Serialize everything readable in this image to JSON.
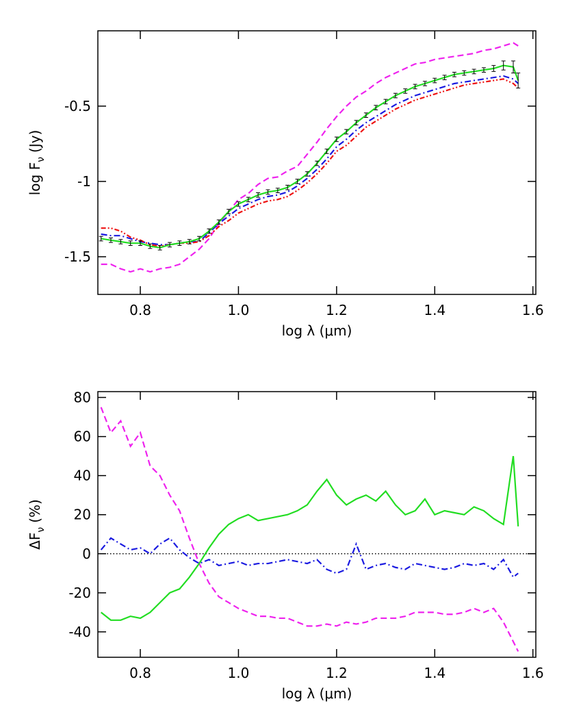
{
  "chart_data": [
    {
      "type": "line",
      "y_label": [
        "log F",
        "ν",
        "(Jy)"
      ],
      "x_label": "log λ (μm)",
      "x": [
        0.72,
        0.74,
        0.76,
        0.78,
        0.8,
        0.82,
        0.84,
        0.86,
        0.88,
        0.9,
        0.92,
        0.94,
        0.96,
        0.98,
        1.0,
        1.02,
        1.04,
        1.06,
        1.08,
        1.1,
        1.12,
        1.14,
        1.16,
        1.18,
        1.2,
        1.22,
        1.24,
        1.26,
        1.28,
        1.3,
        1.32,
        1.34,
        1.36,
        1.38,
        1.4,
        1.42,
        1.44,
        1.46,
        1.48,
        1.5,
        1.52,
        1.54,
        1.56,
        1.57
      ],
      "xlim": [
        0.7135,
        1.606
      ],
      "xticks": [
        {
          "value": 0.8,
          "label": "0.8"
        },
        {
          "value": 1.0,
          "label": "1.0"
        },
        {
          "value": 1.2,
          "label": "1.2"
        },
        {
          "value": 1.4,
          "label": "1.4"
        },
        {
          "value": 1.6,
          "label": "1.6"
        }
      ],
      "ylim": [
        -1.75,
        0
      ],
      "yticks": [
        -1.5,
        -1.0,
        -0.5
      ],
      "series": [
        {
          "color": "#ee22ee",
          "style": "dashed",
          "values": [
            -1.55,
            -1.55,
            -1.58,
            -1.6,
            -1.58,
            -1.6,
            -1.58,
            -1.57,
            -1.55,
            -1.5,
            -1.45,
            -1.38,
            -1.28,
            -1.2,
            -1.12,
            -1.08,
            -1.02,
            -0.98,
            -0.97,
            -0.93,
            -0.9,
            -0.82,
            -0.74,
            -0.65,
            -0.57,
            -0.5,
            -0.44,
            -0.4,
            -0.35,
            -0.31,
            -0.28,
            -0.25,
            -0.22,
            -0.21,
            -0.19,
            -0.18,
            -0.17,
            -0.16,
            -0.15,
            -0.13,
            -0.12,
            -0.1,
            -0.08,
            -0.1
          ]
        },
        {
          "color": "#1a1ae0",
          "style": "dashdot",
          "values": [
            -1.35,
            -1.36,
            -1.36,
            -1.38,
            -1.4,
            -1.41,
            -1.42,
            -1.42,
            -1.41,
            -1.4,
            -1.4,
            -1.34,
            -1.28,
            -1.23,
            -1.18,
            -1.15,
            -1.12,
            -1.1,
            -1.09,
            -1.07,
            -1.03,
            -0.98,
            -0.92,
            -0.85,
            -0.77,
            -0.72,
            -0.66,
            -0.61,
            -0.57,
            -0.53,
            -0.49,
            -0.46,
            -0.43,
            -0.41,
            -0.39,
            -0.37,
            -0.35,
            -0.34,
            -0.33,
            -0.32,
            -0.31,
            -0.3,
            -0.32,
            -0.35
          ]
        },
        {
          "color": "#ee1111",
          "style": "dashdotdot",
          "values": [
            -1.31,
            -1.31,
            -1.33,
            -1.37,
            -1.39,
            -1.42,
            -1.43,
            -1.42,
            -1.41,
            -1.41,
            -1.4,
            -1.36,
            -1.3,
            -1.26,
            -1.21,
            -1.18,
            -1.15,
            -1.13,
            -1.12,
            -1.1,
            -1.06,
            -1.01,
            -0.95,
            -0.88,
            -0.8,
            -0.76,
            -0.7,
            -0.64,
            -0.6,
            -0.56,
            -0.52,
            -0.49,
            -0.46,
            -0.44,
            -0.42,
            -0.4,
            -0.38,
            -0.36,
            -0.35,
            -0.34,
            -0.33,
            -0.32,
            -0.35,
            -0.38
          ]
        },
        {
          "color": "#22dd22",
          "style": "solid",
          "error_color": "#000000",
          "values": [
            -1.38,
            -1.39,
            -1.4,
            -1.41,
            -1.41,
            -1.43,
            -1.44,
            -1.42,
            -1.41,
            -1.4,
            -1.38,
            -1.33,
            -1.27,
            -1.2,
            -1.15,
            -1.12,
            -1.09,
            -1.07,
            -1.06,
            -1.04,
            -1.0,
            -0.95,
            -0.88,
            -0.8,
            -0.72,
            -0.67,
            -0.61,
            -0.56,
            -0.51,
            -0.47,
            -0.43,
            -0.4,
            -0.37,
            -0.35,
            -0.33,
            -0.31,
            -0.29,
            -0.28,
            -0.27,
            -0.26,
            -0.25,
            -0.23,
            -0.24,
            -0.33
          ],
          "errors": [
            0.015,
            0.015,
            0.015,
            0.015,
            0.015,
            0.015,
            0.015,
            0.015,
            0.015,
            0.015,
            0.015,
            0.015,
            0.015,
            0.015,
            0.015,
            0.015,
            0.015,
            0.015,
            0.015,
            0.015,
            0.015,
            0.015,
            0.015,
            0.015,
            0.015,
            0.015,
            0.015,
            0.015,
            0.015,
            0.015,
            0.015,
            0.015,
            0.015,
            0.015,
            0.015,
            0.015,
            0.015,
            0.015,
            0.015,
            0.015,
            0.02,
            0.03,
            0.04,
            0.05
          ]
        }
      ]
    },
    {
      "type": "line",
      "y_label": [
        "ΔF",
        "ν",
        "(%)"
      ],
      "x_label": "log λ (μm)",
      "x": [
        0.72,
        0.74,
        0.76,
        0.78,
        0.8,
        0.82,
        0.84,
        0.86,
        0.88,
        0.9,
        0.92,
        0.94,
        0.96,
        0.98,
        1.0,
        1.02,
        1.04,
        1.06,
        1.08,
        1.1,
        1.12,
        1.14,
        1.16,
        1.18,
        1.2,
        1.22,
        1.24,
        1.26,
        1.28,
        1.3,
        1.32,
        1.34,
        1.36,
        1.38,
        1.4,
        1.42,
        1.44,
        1.46,
        1.48,
        1.5,
        1.52,
        1.54,
        1.56,
        1.57
      ],
      "xlim": [
        0.7135,
        1.606
      ],
      "xticks": [
        {
          "value": 0.8,
          "label": "0.8"
        },
        {
          "value": 1.0,
          "label": "1.0"
        },
        {
          "value": 1.2,
          "label": "1.2"
        },
        {
          "value": 1.4,
          "label": "1.4"
        },
        {
          "value": 1.6,
          "label": "1.6"
        }
      ],
      "ylim": [
        -53,
        83
      ],
      "yticks": [
        -40,
        -20,
        0,
        20,
        40,
        60,
        80
      ],
      "reference_line": {
        "value": 0,
        "color": "#000000",
        "style": "dotted"
      },
      "series": [
        {
          "color": "#ee22ee",
          "style": "dashed",
          "values": [
            75,
            62,
            68,
            55,
            62,
            45,
            40,
            30,
            22,
            8,
            -5,
            -15,
            -22,
            -25,
            -28,
            -30,
            -32,
            -32,
            -33,
            -33,
            -35,
            -37,
            -37,
            -36,
            -37,
            -35,
            -36,
            -35,
            -33,
            -33,
            -33,
            -32,
            -30,
            -30,
            -30,
            -31,
            -31,
            -30,
            -28,
            -30,
            -28,
            -35,
            -45,
            -50
          ]
        },
        {
          "color": "#1a1ae0",
          "style": "dashdot",
          "values": [
            2,
            8,
            5,
            2,
            3,
            0,
            5,
            8,
            2,
            -2,
            -5,
            -3,
            -6,
            -5,
            -4,
            -6,
            -5,
            -5,
            -4,
            -3,
            -4,
            -5,
            -3,
            -8,
            -10,
            -8,
            5,
            -8,
            -6,
            -5,
            -7,
            -8,
            -5,
            -6,
            -7,
            -8,
            -7,
            -5,
            -6,
            -5,
            -8,
            -3,
            -12,
            -10
          ]
        },
        {
          "color": "#22dd22",
          "style": "solid",
          "values": [
            -30,
            -34,
            -34,
            -32,
            -33,
            -30,
            -25,
            -20,
            -18,
            -12,
            -5,
            3,
            10,
            15,
            18,
            20,
            17,
            18,
            19,
            20,
            22,
            25,
            32,
            38,
            30,
            25,
            28,
            30,
            27,
            32,
            25,
            20,
            22,
            28,
            20,
            22,
            21,
            20,
            24,
            22,
            18,
            15,
            50,
            14
          ]
        }
      ]
    }
  ]
}
